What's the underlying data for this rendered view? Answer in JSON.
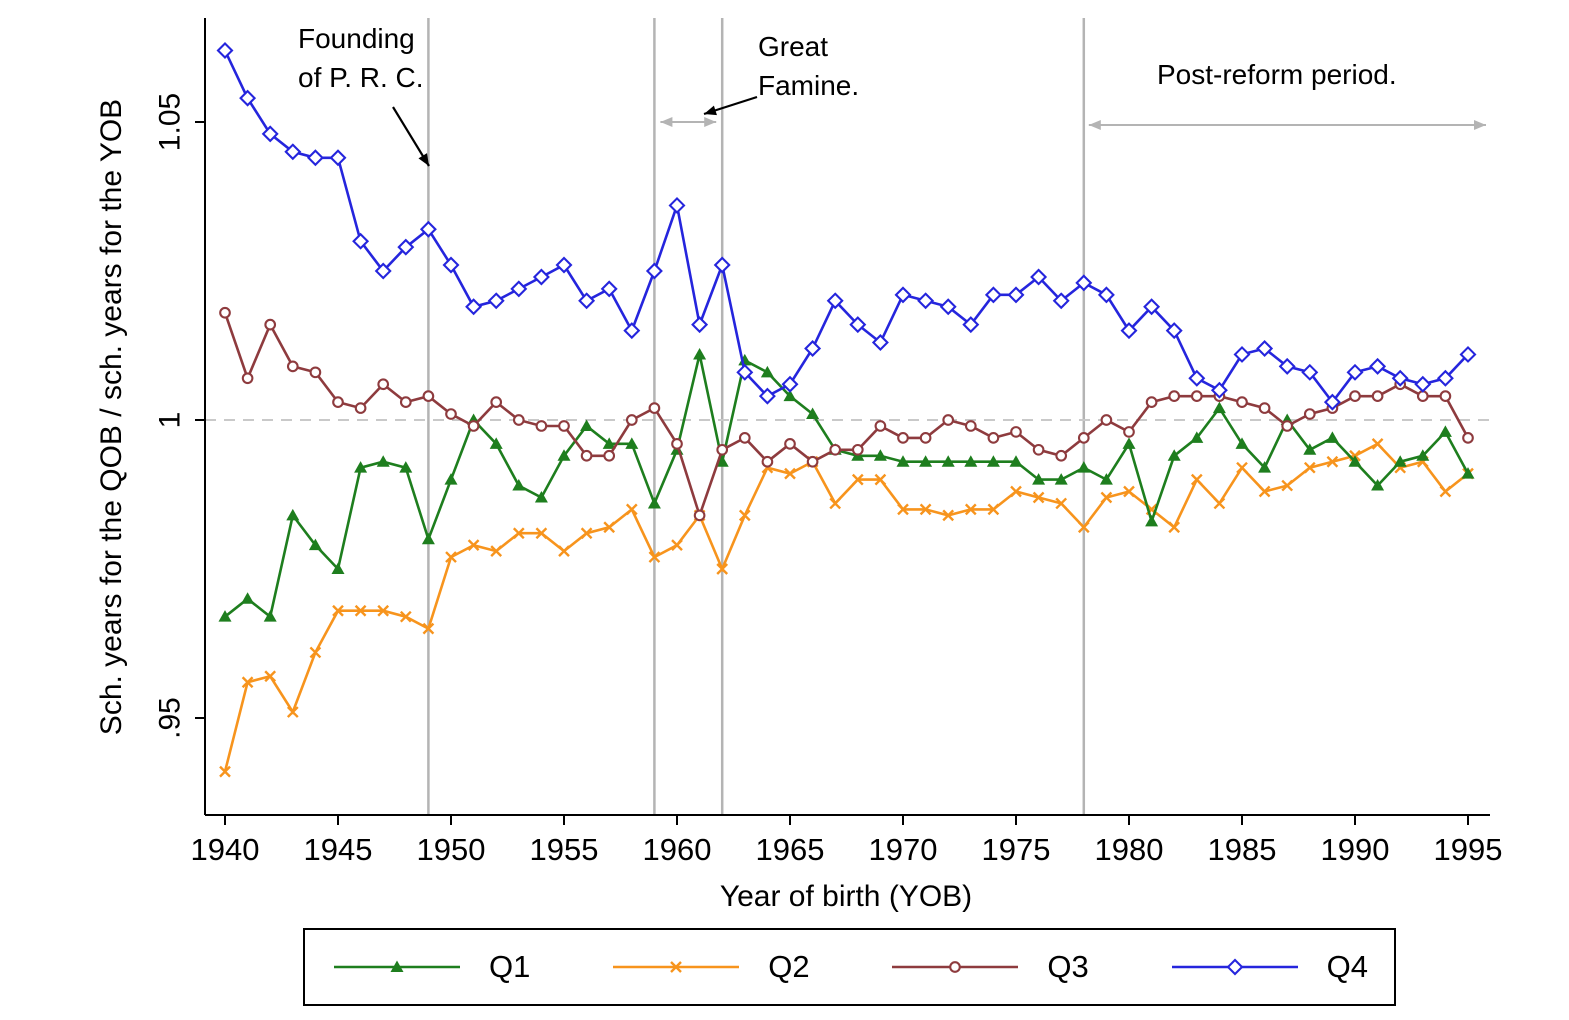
{
  "chart_data": {
    "type": "line",
    "title": "",
    "xlabel": "Year of birth (YOB)",
    "ylabel": "Sch. years for the QOB / sch. years for the YOB",
    "x_range": [
      1940,
      1995
    ],
    "x_ticks": [
      1940,
      1945,
      1950,
      1955,
      1960,
      1965,
      1970,
      1975,
      1980,
      1985,
      1990,
      1995
    ],
    "y_ticks": [
      0.95,
      1,
      1.05
    ],
    "y_tick_labels": [
      ".95",
      "1",
      "1.05"
    ],
    "ylim": [
      0.933,
      1.068
    ],
    "grid": false,
    "reference_line_y": 1,
    "legend_position": "bottom",
    "events": {
      "founding_line_year": 1949,
      "famine_span_years": [
        1959,
        1962
      ],
      "post_reform_start_year": 1978,
      "post_reform_end_year": 1995.8
    },
    "annotations": {
      "founding": {
        "text": "Founding\nof P. R. C."
      },
      "famine": {
        "text": "Great\nFamine."
      },
      "post_reform": {
        "text": "Post-reform period."
      }
    },
    "x": [
      1940,
      1941,
      1942,
      1943,
      1944,
      1945,
      1946,
      1947,
      1948,
      1949,
      1950,
      1951,
      1952,
      1953,
      1954,
      1955,
      1956,
      1957,
      1958,
      1959,
      1960,
      1961,
      1962,
      1963,
      1964,
      1965,
      1966,
      1967,
      1968,
      1969,
      1970,
      1971,
      1972,
      1973,
      1974,
      1975,
      1976,
      1977,
      1978,
      1979,
      1980,
      1981,
      1982,
      1983,
      1984,
      1985,
      1986,
      1987,
      1988,
      1989,
      1990,
      1991,
      1992,
      1993,
      1994,
      1995
    ],
    "series": [
      {
        "name": "Q1",
        "color": "#1e7e1e",
        "marker": "triangle",
        "values": [
          0.967,
          0.97,
          0.967,
          0.984,
          0.979,
          0.975,
          0.992,
          0.993,
          0.992,
          0.98,
          0.99,
          1.0,
          0.996,
          0.989,
          0.987,
          0.994,
          0.999,
          0.996,
          0.996,
          0.986,
          0.995,
          1.011,
          0.993,
          1.01,
          1.008,
          1.004,
          1.001,
          0.995,
          0.994,
          0.994,
          0.993,
          0.993,
          0.993,
          0.993,
          0.993,
          0.993,
          0.99,
          0.99,
          0.992,
          0.99,
          0.996,
          0.983,
          0.994,
          0.997,
          1.002,
          0.996,
          0.992,
          1.0,
          0.995,
          0.997,
          0.993,
          0.989,
          0.993,
          0.994,
          0.998,
          0.991
        ]
      },
      {
        "name": "Q2",
        "color": "#f7941d",
        "marker": "x",
        "values": [
          0.941,
          0.956,
          0.957,
          0.951,
          0.961,
          0.968,
          0.968,
          0.968,
          0.967,
          0.965,
          0.977,
          0.979,
          0.978,
          0.981,
          0.981,
          0.978,
          0.981,
          0.982,
          0.985,
          0.977,
          0.979,
          0.984,
          0.975,
          0.984,
          0.992,
          0.991,
          0.993,
          0.986,
          0.99,
          0.99,
          0.985,
          0.985,
          0.984,
          0.985,
          0.985,
          0.988,
          0.987,
          0.986,
          0.982,
          0.987,
          0.988,
          0.985,
          0.982,
          0.99,
          0.986,
          0.992,
          0.988,
          0.989,
          0.992,
          0.993,
          0.994,
          0.996,
          0.992,
          0.993,
          0.988,
          0.991
        ]
      },
      {
        "name": "Q3",
        "color": "#8e3b3e",
        "marker": "circle",
        "values": [
          1.018,
          1.007,
          1.016,
          1.009,
          1.008,
          1.003,
          1.002,
          1.006,
          1.003,
          1.004,
          1.001,
          0.999,
          1.003,
          1.0,
          0.999,
          0.999,
          0.994,
          0.994,
          1.0,
          1.002,
          0.996,
          0.984,
          0.995,
          0.997,
          0.993,
          0.996,
          0.993,
          0.995,
          0.995,
          0.999,
          0.997,
          0.997,
          1.0,
          0.999,
          0.997,
          0.998,
          0.995,
          0.994,
          0.997,
          1.0,
          0.998,
          1.003,
          1.004,
          1.004,
          1.004,
          1.003,
          1.002,
          0.999,
          1.001,
          1.002,
          1.004,
          1.004,
          1.006,
          1.004,
          1.004,
          0.997
        ]
      },
      {
        "name": "Q4",
        "color": "#2525dd",
        "marker": "diamond",
        "values": [
          1.062,
          1.054,
          1.048,
          1.045,
          1.044,
          1.044,
          1.03,
          1.025,
          1.029,
          1.032,
          1.026,
          1.019,
          1.02,
          1.022,
          1.024,
          1.026,
          1.02,
          1.022,
          1.015,
          1.025,
          1.036,
          1.016,
          1.026,
          1.008,
          1.004,
          1.006,
          1.012,
          1.02,
          1.016,
          1.013,
          1.021,
          1.02,
          1.019,
          1.016,
          1.021,
          1.021,
          1.024,
          1.02,
          1.023,
          1.021,
          1.015,
          1.019,
          1.015,
          1.007,
          1.005,
          1.011,
          1.012,
          1.009,
          1.008,
          1.003,
          1.008,
          1.009,
          1.007,
          1.006,
          1.007,
          1.011
        ]
      }
    ]
  }
}
